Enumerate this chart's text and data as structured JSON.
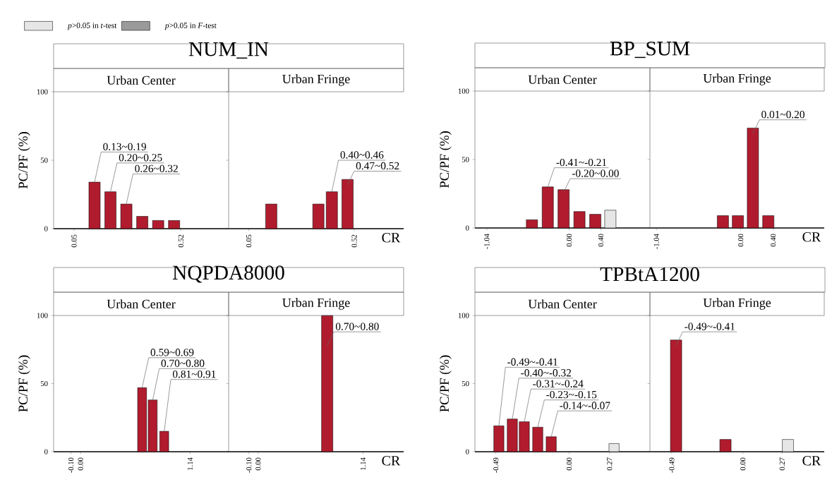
{
  "chart_data": [
    {
      "type": "bar",
      "title": "NUM_IN",
      "subtitle": "Urban Center",
      "ylabel": "PC/PF (%)",
      "series": [
        {
          "color": "#b01c2e",
          "x": [
            0.14,
            0.21,
            0.28,
            0.35,
            0.42,
            0.49
          ],
          "values": [
            34,
            27,
            18,
            9,
            6,
            6
          ]
        }
      ],
      "xlim": [
        -0.04,
        0.73
      ],
      "xticks": [
        0.05,
        0.52
      ],
      "ylim": [
        0,
        100
      ],
      "yticks": [
        0,
        50,
        100
      ],
      "annotations": [
        {
          "text": "0.13~0.19",
          "x": 0.14,
          "y": 34
        },
        {
          "text": "0.20~0.25",
          "x": 0.21,
          "y": 27
        },
        {
          "text": "0.26~0.32",
          "x": 0.28,
          "y": 18
        }
      ]
    },
    {
      "type": "bar",
      "subtitle": "Urban Fringe",
      "xlabel": "CR",
      "tick_labels": "x",
      "series": [
        {
          "color": "#b01c2e",
          "x": [
            0.15,
            0.36,
            0.42,
            0.49
          ],
          "values": [
            18,
            18,
            27,
            36
          ]
        }
      ],
      "xlim": [
        -0.04,
        0.74
      ],
      "xticks": [
        0.05,
        0.52
      ],
      "ylim": [
        0,
        100
      ],
      "yticks": [
        0,
        50,
        100
      ],
      "annotations": [
        {
          "text": "0.40~0.46",
          "x": 0.42,
          "y": 27
        },
        {
          "text": "0.47~0.52",
          "x": 0.49,
          "y": 36
        }
      ]
    },
    {
      "type": "bar",
      "title": "BP_SUM",
      "subtitle": "Urban Center",
      "ylabel": "PC/PF (%)",
      "legend": "top left",
      "series": [
        {
          "color": "#b01c2e",
          "x": [
            -0.47,
            -0.27,
            -0.07,
            0.13,
            0.33
          ],
          "values": [
            6,
            30,
            28,
            12,
            10
          ]
        },
        {
          "name": "*p*>0.05 in *t*-test",
          "color": "#e6e6e6",
          "x": [
            0.52
          ],
          "values": [
            13
          ]
        },
        {
          "name": "*p*>0.05 in *F*-test",
          "color": "#9a9a9a"
        }
      ],
      "xlim": [
        -1.19,
        1.02
      ],
      "xticks": [
        -1.04,
        {
          "value": 0,
          "label": "0.00"
        },
        {
          "value": 0.4,
          "label": "0.40"
        }
      ],
      "ylim": [
        0,
        100
      ],
      "yticks": [
        0,
        50,
        100
      ],
      "annotations": [
        {
          "text": "-0.41~-0.21",
          "x": -0.27,
          "y": 30
        },
        {
          "text": "-0.20~0.00",
          "x": -0.07,
          "y": 28
        }
      ]
    },
    {
      "type": "bar",
      "subtitle": "Urban Fringe",
      "xlabel": "CR",
      "tick_labels": "x",
      "series": [
        {
          "color": "#b01c2e",
          "x": [
            -0.22,
            -0.035,
            0.15,
            0.34
          ],
          "values": [
            9,
            9,
            73,
            9
          ]
        }
      ],
      "xlim": [
        -1.12,
        1.03
      ],
      "xticks": [
        -1.04,
        {
          "value": 0,
          "label": "0.00"
        },
        {
          "value": 0.4,
          "label": "0.40"
        }
      ],
      "ylim": [
        0,
        100
      ],
      "yticks": [
        0,
        50,
        100
      ],
      "annotations": [
        {
          "text": "0.01~0.20",
          "x": 0.15,
          "y": 73
        }
      ]
    },
    {
      "type": "bar",
      "title": "NQPDA8000",
      "subtitle": "Urban Center",
      "ylabel": "PC/PF (%)",
      "series": [
        {
          "color": "#b01c2e",
          "x": [
            0.64,
            0.75,
            0.87
          ],
          "values": [
            47,
            38,
            15
          ]
        }
      ],
      "xlim": [
        -0.28,
        1.54
      ],
      "xticks": [
        {
          "value": -0.1,
          "label": "-0.10"
        },
        {
          "value": 0,
          "label": "0.00"
        },
        1.14
      ],
      "ylim": [
        0,
        100
      ],
      "yticks": [
        0,
        50,
        100
      ],
      "annotations": [
        {
          "text": "0.59~0.69",
          "x": 0.64,
          "y": 47
        },
        {
          "text": "0.70~0.80",
          "x": 0.75,
          "y": 38
        },
        {
          "text": "0.81~0.91",
          "x": 0.87,
          "y": 15
        }
      ]
    },
    {
      "type": "bar",
      "subtitle": "Urban Fringe",
      "xlabel": "CR",
      "tick_labels": "x",
      "series": [
        {
          "color": "#b01c2e",
          "x": [
            0.75
          ],
          "values": [
            100
          ]
        }
      ],
      "xlim": [
        -0.32,
        1.58
      ],
      "xticks": [
        {
          "value": -0.1,
          "label": "-0.10"
        },
        {
          "value": 0,
          "label": "0.00"
        },
        1.14
      ],
      "ylim": [
        0,
        100
      ],
      "yticks": [
        0,
        50,
        100
      ],
      "annotations": [
        {
          "text": "0.70~0.80",
          "x": 0.75,
          "y": 100
        }
      ]
    },
    {
      "type": "bar",
      "title": "TPBtA1200",
      "subtitle": "Urban Center",
      "ylabel": "PC/PF (%)",
      "series": [
        {
          "color": "#b01c2e",
          "x": [
            -0.47,
            -0.38,
            -0.3,
            -0.21,
            -0.12
          ],
          "values": [
            19,
            24,
            22,
            18,
            11
          ]
        },
        {
          "color": "#e6e6e6",
          "x": [
            0.3
          ],
          "values": [
            6
          ]
        }
      ],
      "xlim": [
        -0.63,
        0.54
      ],
      "xticks": [
        -0.49,
        {
          "value": 0,
          "label": "0.00"
        },
        0.27
      ],
      "ylim": [
        0,
        100
      ],
      "yticks": [
        0,
        50,
        100
      ],
      "annotations": [
        {
          "text": "-0.49~-0.41",
          "x": -0.47,
          "y": 19
        },
        {
          "text": "-0.40~-0.32",
          "x": -0.38,
          "y": 24
        },
        {
          "text": "-0.31~-0.24",
          "x": -0.3,
          "y": 22
        },
        {
          "text": "-0.23~-0.15",
          "x": -0.21,
          "y": 18
        },
        {
          "text": "-0.14~-0.07",
          "x": -0.12,
          "y": 11
        }
      ]
    },
    {
      "type": "bar",
      "subtitle": "Urban Fringe",
      "xlabel": "CR",
      "tick_labels": "x",
      "series": [
        {
          "color": "#b01c2e",
          "x": [
            -0.46,
            -0.12
          ],
          "values": [
            82,
            9
          ]
        },
        {
          "color": "#e6e6e6",
          "x": [
            0.31
          ],
          "values": [
            9
          ]
        }
      ],
      "xlim": [
        -0.64,
        0.56
      ],
      "xticks": [
        -0.49,
        {
          "value": 0,
          "label": "0.00"
        },
        0.27
      ],
      "ylim": [
        0,
        100
      ],
      "yticks": [
        0,
        50,
        100
      ],
      "annotations": [
        {
          "text": "-0.49~-0.41",
          "x": -0.46,
          "y": 82
        }
      ]
    }
  ]
}
